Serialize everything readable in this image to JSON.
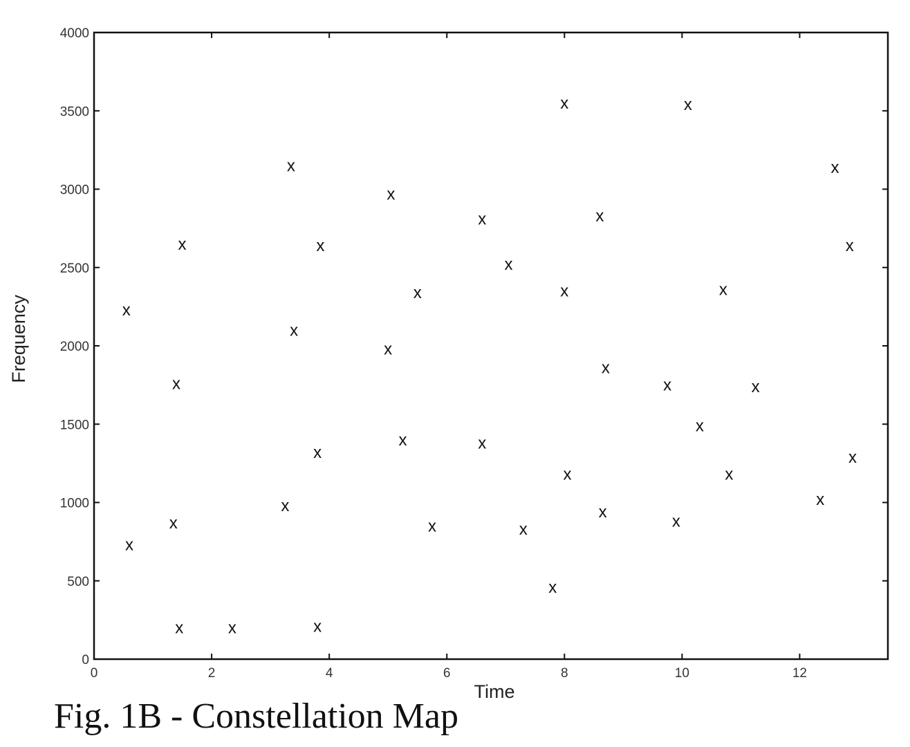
{
  "caption": "Fig. 1B - Constellation Map",
  "chart_data": {
    "type": "scatter",
    "title": "",
    "xlabel": "Time",
    "ylabel": "Frequency",
    "xlim": [
      0,
      13.5
    ],
    "ylim": [
      0,
      4000
    ],
    "x_ticks": [
      0,
      2,
      4,
      6,
      8,
      10,
      12
    ],
    "y_ticks": [
      0,
      500,
      1000,
      1500,
      2000,
      2500,
      3000,
      3500,
      4000
    ],
    "marker_symbol": "x",
    "grid": false,
    "series": [
      {
        "points": [
          [
            0.55,
            2230
          ],
          [
            0.6,
            730
          ],
          [
            1.35,
            870
          ],
          [
            1.4,
            1760
          ],
          [
            1.45,
            200
          ],
          [
            1.5,
            2650
          ],
          [
            2.35,
            200
          ],
          [
            3.25,
            980
          ],
          [
            3.35,
            3150
          ],
          [
            3.4,
            2100
          ],
          [
            3.8,
            1320
          ],
          [
            3.8,
            210
          ],
          [
            3.85,
            2640
          ],
          [
            5.0,
            1980
          ],
          [
            5.05,
            2970
          ],
          [
            5.25,
            1400
          ],
          [
            5.5,
            2340
          ],
          [
            5.75,
            850
          ],
          [
            6.6,
            1380
          ],
          [
            6.6,
            2810
          ],
          [
            7.05,
            2520
          ],
          [
            7.3,
            830
          ],
          [
            7.8,
            460
          ],
          [
            8.0,
            3550
          ],
          [
            8.0,
            2350
          ],
          [
            8.05,
            1180
          ],
          [
            8.6,
            2830
          ],
          [
            8.65,
            940
          ],
          [
            8.7,
            1860
          ],
          [
            9.75,
            1750
          ],
          [
            9.9,
            880
          ],
          [
            10.1,
            3540
          ],
          [
            10.3,
            1490
          ],
          [
            10.7,
            2360
          ],
          [
            10.8,
            1180
          ],
          [
            11.25,
            1740
          ],
          [
            12.35,
            1020
          ],
          [
            12.6,
            3140
          ],
          [
            12.85,
            2640
          ],
          [
            12.9,
            1290
          ]
        ]
      }
    ]
  }
}
